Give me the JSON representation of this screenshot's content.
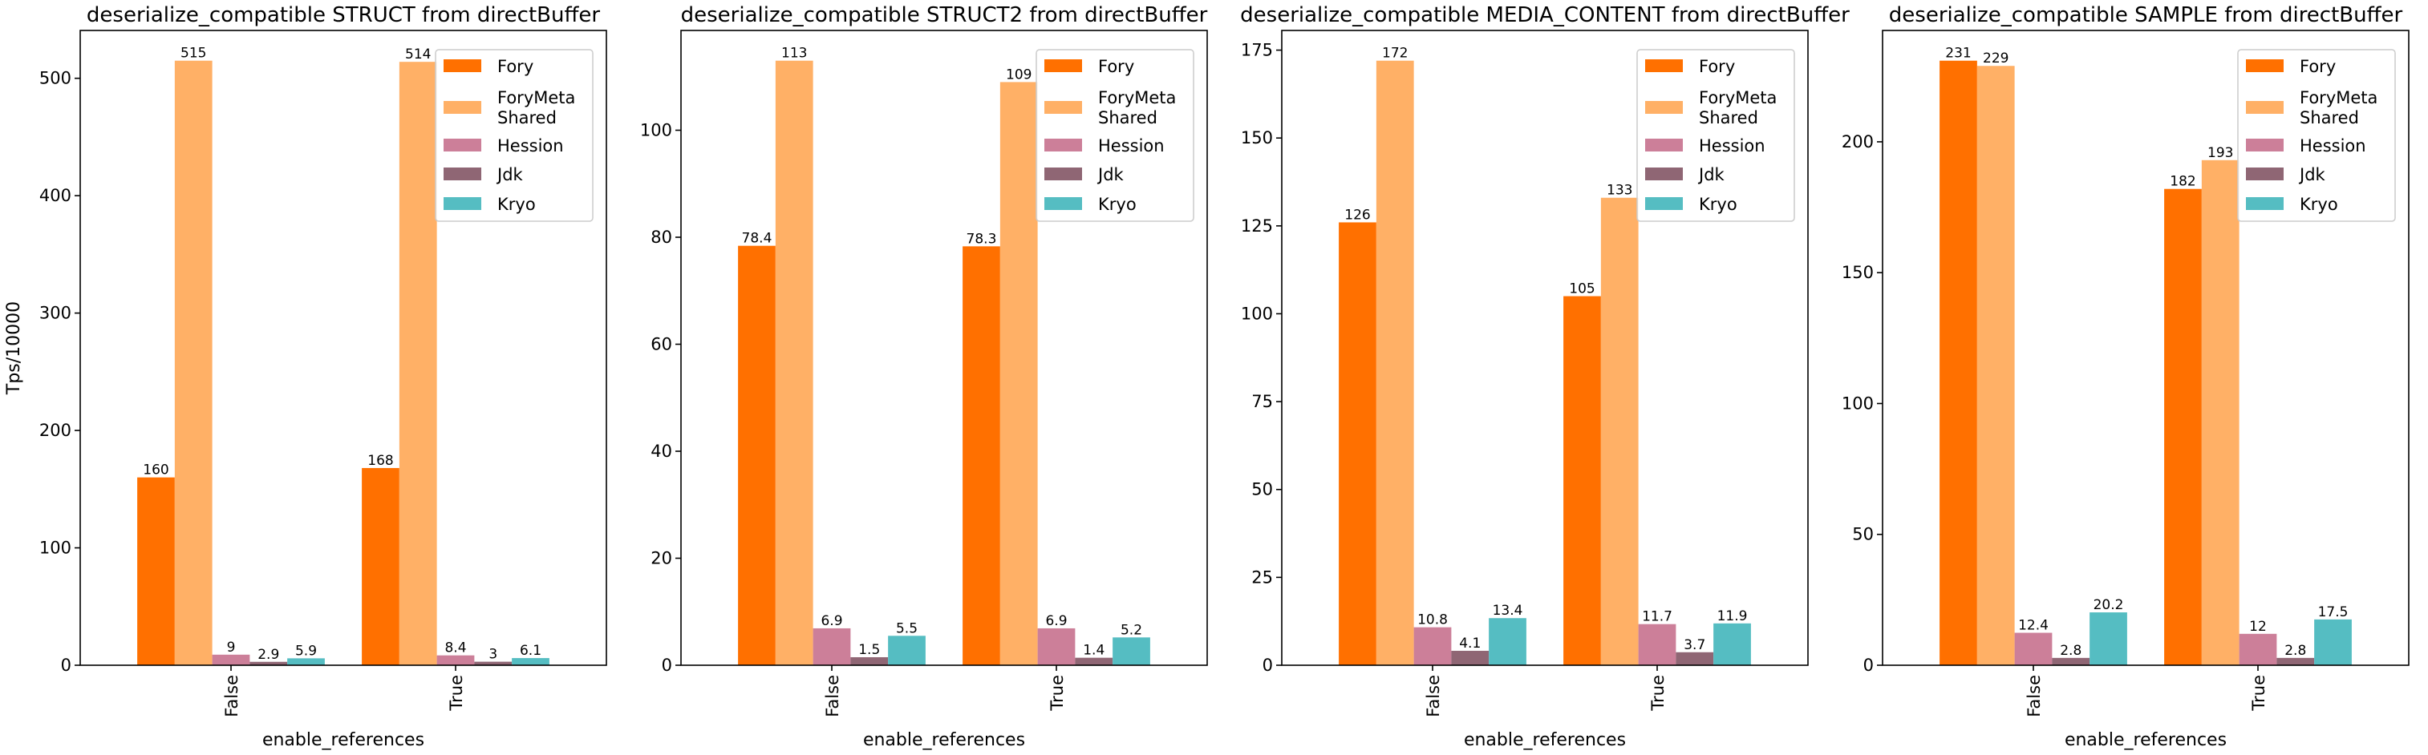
{
  "chart_data": [
    {
      "type": "bar",
      "title": "deserialize_compatible STRUCT from directBuffer",
      "xlabel": "enable_references",
      "ylabel": "Tps/10000",
      "categories": [
        "False",
        "True"
      ],
      "ylim": [
        0,
        540.75
      ],
      "yticks": [
        0,
        100,
        200,
        300,
        400,
        500
      ],
      "grid": false,
      "legend": "top-right",
      "series": [
        {
          "name": "Fory",
          "values": [
            160,
            168
          ],
          "labels": [
            "160",
            "168"
          ]
        },
        {
          "name": "ForyMeta\nShared",
          "values": [
            515,
            514
          ],
          "labels": [
            "515",
            "514"
          ]
        },
        {
          "name": "Hession",
          "values": [
            9,
            8.4
          ],
          "labels": [
            "9",
            "8.4"
          ]
        },
        {
          "name": "Jdk",
          "values": [
            2.9,
            3
          ],
          "labels": [
            "2.9",
            "3"
          ]
        },
        {
          "name": "Kryo",
          "values": [
            5.9,
            6.1
          ],
          "labels": [
            "5.9",
            "6.1"
          ]
        }
      ]
    },
    {
      "type": "bar",
      "title": "deserialize_compatible STRUCT2 from directBuffer",
      "xlabel": "enable_references",
      "ylabel": "",
      "categories": [
        "False",
        "True"
      ],
      "ylim": [
        0,
        118.65
      ],
      "yticks": [
        0,
        20,
        40,
        60,
        80,
        100
      ],
      "grid": false,
      "legend": "top-right",
      "series": [
        {
          "name": "Fory",
          "values": [
            78.4,
            78.3
          ],
          "labels": [
            "78.4",
            "78.3"
          ]
        },
        {
          "name": "ForyMeta\nShared",
          "values": [
            113,
            109
          ],
          "labels": [
            "113",
            "109"
          ]
        },
        {
          "name": "Hession",
          "values": [
            6.9,
            6.9
          ],
          "labels": [
            "6.9",
            "6.9"
          ]
        },
        {
          "name": "Jdk",
          "values": [
            1.5,
            1.4
          ],
          "labels": [
            "1.5",
            "1.4"
          ]
        },
        {
          "name": "Kryo",
          "values": [
            5.5,
            5.2
          ],
          "labels": [
            "5.5",
            "5.2"
          ]
        }
      ]
    },
    {
      "type": "bar",
      "title": "deserialize_compatible MEDIA_CONTENT from directBuffer",
      "xlabel": "enable_references",
      "ylabel": "",
      "categories": [
        "False",
        "True"
      ],
      "ylim": [
        0,
        180.6
      ],
      "yticks": [
        0,
        25,
        50,
        75,
        100,
        125,
        150,
        175
      ],
      "grid": false,
      "legend": "top-right",
      "series": [
        {
          "name": "Fory",
          "values": [
            126,
            105
          ],
          "labels": [
            "126",
            "105"
          ]
        },
        {
          "name": "ForyMeta\nShared",
          "values": [
            172,
            133
          ],
          "labels": [
            "172",
            "133"
          ]
        },
        {
          "name": "Hession",
          "values": [
            10.8,
            11.7
          ],
          "labels": [
            "10.8",
            "11.7"
          ]
        },
        {
          "name": "Jdk",
          "values": [
            4.1,
            3.7
          ],
          "labels": [
            "4.1",
            "3.7"
          ]
        },
        {
          "name": "Kryo",
          "values": [
            13.4,
            11.9
          ],
          "labels": [
            "13.4",
            "11.9"
          ]
        }
      ]
    },
    {
      "type": "bar",
      "title": "deserialize_compatible SAMPLE from directBuffer",
      "xlabel": "enable_references",
      "ylabel": "",
      "categories": [
        "False",
        "True"
      ],
      "ylim": [
        0,
        242.55
      ],
      "yticks": [
        0,
        50,
        100,
        150,
        200
      ],
      "grid": false,
      "legend": "top-right",
      "series": [
        {
          "name": "Fory",
          "values": [
            231,
            182
          ],
          "labels": [
            "231",
            "182"
          ]
        },
        {
          "name": "ForyMeta\nShared",
          "values": [
            229,
            193
          ],
          "labels": [
            "229",
            "193"
          ]
        },
        {
          "name": "Hession",
          "values": [
            12.4,
            12
          ],
          "labels": [
            "12.4",
            "12"
          ]
        },
        {
          "name": "Jdk",
          "values": [
            2.8,
            2.8
          ],
          "labels": [
            "2.8",
            "2.8"
          ]
        },
        {
          "name": "Kryo",
          "values": [
            20.2,
            17.5
          ],
          "labels": [
            "20.2",
            "17.5"
          ]
        }
      ]
    }
  ],
  "colors": {
    "Fory": "#ff7000",
    "ForyMeta\nShared": "#ffb066",
    "Hession": "#cc7f99",
    "Jdk": "#8f6674",
    "Kryo": "#55bdc2"
  }
}
